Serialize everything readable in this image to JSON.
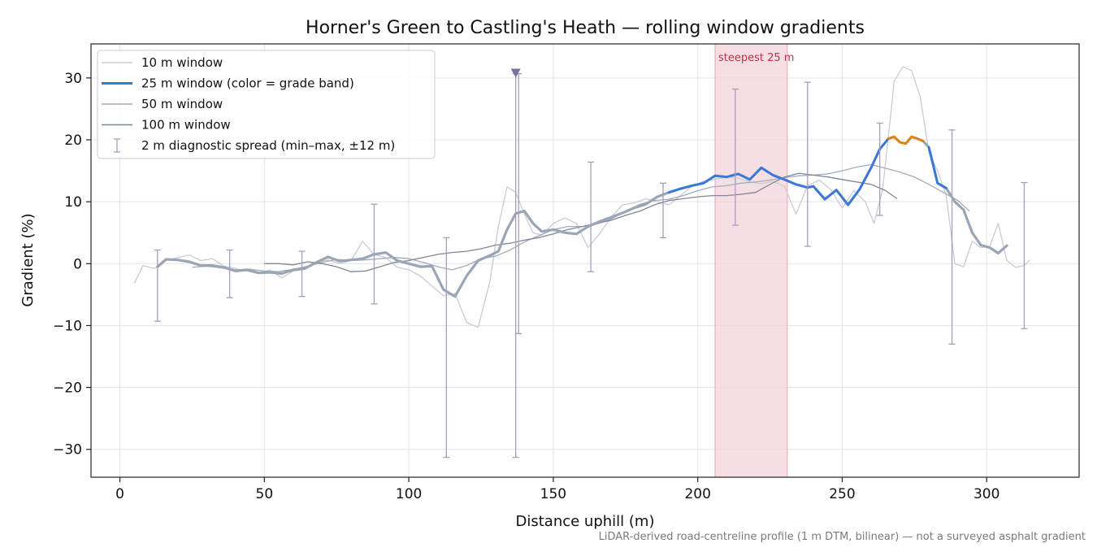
{
  "chart_data": {
    "type": "line",
    "title": "Horner's Green to Castling's Heath — rolling window gradients",
    "xlabel": "Distance uphill (m)",
    "ylabel": "Gradient (%)",
    "xlim": [
      -10,
      332
    ],
    "ylim": [
      -34.5,
      35.5
    ],
    "xticks": [
      0,
      50,
      100,
      150,
      200,
      250,
      300
    ],
    "yticks": [
      -30,
      -20,
      -10,
      0,
      10,
      20,
      30
    ],
    "ytick_labels": [
      "−30",
      "−20",
      "−10",
      "0",
      "10",
      "20",
      "30"
    ],
    "grid": true,
    "legend_position": "top-left",
    "footnote": "LiDAR-derived road-centreline profile (1 m DTM, bilinear) — not a surveyed asphalt gradient",
    "highlight": {
      "label": "steepest 25 m",
      "x_range": [
        206,
        231
      ],
      "color": "#f2d4d9",
      "label_color": "#c0304a"
    },
    "marker": {
      "x": 137,
      "y": 30.7,
      "shape": "triangle-down",
      "color": "#7c6fa0"
    },
    "colors": {
      "w10": "#c7ccd6",
      "w25": "#9aa6b4",
      "w25_band_mid": "#3a78d8",
      "w25_band_high": "#e0860a",
      "w50": "#a2abbb",
      "w100": "#7f8796",
      "errorbar": "#a89cc0"
    },
    "series": [
      {
        "name": "10 m window",
        "color": "#c7ccd6",
        "width": 1.3,
        "x": [
          5,
          8,
          12,
          16,
          20,
          24,
          28,
          32,
          36,
          40,
          44,
          48,
          52,
          56,
          60,
          64,
          68,
          72,
          76,
          80,
          84,
          88,
          92,
          96,
          100,
          104,
          108,
          112,
          116,
          120,
          124,
          128,
          131,
          134,
          137,
          140,
          143,
          146,
          150,
          154,
          158,
          162,
          166,
          170,
          174,
          178,
          182,
          186,
          190,
          194,
          198,
          202,
          206,
          210,
          214,
          218,
          222,
          226,
          230,
          234,
          238,
          242,
          246,
          250,
          254,
          258,
          261,
          264,
          267,
          268,
          271,
          274,
          277,
          280,
          283,
          286,
          289,
          292,
          295,
          298,
          301,
          304,
          307,
          310,
          313,
          315
        ],
        "y": [
          -3.2,
          -0.3,
          -0.8,
          0.5,
          1.0,
          1.4,
          0.5,
          0.8,
          -0.4,
          -0.8,
          -1.2,
          -1.6,
          -1.0,
          -2.3,
          -1.2,
          -0.9,
          0.2,
          0.6,
          0.0,
          0.5,
          3.6,
          1.5,
          1.0,
          -0.6,
          -1.0,
          -2.0,
          -3.6,
          -5.2,
          -4.8,
          -9.5,
          -10.3,
          -3.0,
          6.0,
          12.4,
          11.5,
          8.0,
          5.0,
          4.6,
          6.5,
          7.4,
          6.5,
          2.6,
          4.8,
          7.5,
          9.5,
          9.8,
          10.5,
          10.0,
          9.5,
          11.0,
          12.5,
          13.3,
          13.6,
          14.0,
          13.8,
          13.2,
          12.9,
          13.3,
          12.5,
          8.0,
          12.6,
          13.5,
          12.0,
          9.0,
          11.8,
          10.0,
          6.5,
          12.0,
          25.0,
          29.5,
          31.8,
          31.2,
          27.0,
          18.0,
          15.0,
          11.0,
          0.0,
          -0.5,
          3.6,
          2.6,
          2.7,
          6.5,
          0.5,
          -0.6,
          -0.3,
          0.6
        ]
      },
      {
        "name": "25 m window (color = grade band)",
        "color": "#3a78d8",
        "width": 2.6,
        "x": [
          13,
          16,
          20,
          24,
          28,
          32,
          36,
          40,
          44,
          48,
          52,
          56,
          60,
          64,
          68,
          72,
          76,
          80,
          84,
          88,
          92,
          96,
          100,
          104,
          108,
          112,
          116,
          120,
          124,
          128,
          131,
          134,
          137,
          140,
          143,
          146,
          150,
          154,
          158,
          162,
          166,
          170,
          174,
          178,
          182,
          186,
          190,
          194,
          198,
          202,
          206,
          210,
          214,
          218,
          222,
          226,
          230,
          234,
          238,
          240,
          244,
          248,
          252,
          256,
          260,
          263,
          266,
          268,
          270,
          272,
          274,
          276,
          278,
          280,
          283,
          286,
          289,
          292,
          295,
          298,
          301,
          304,
          307
        ],
        "y": [
          -0.5,
          0.7,
          0.6,
          0.3,
          -0.3,
          -0.3,
          -0.6,
          -1.2,
          -1.0,
          -1.5,
          -1.4,
          -1.6,
          -1.0,
          -0.8,
          0.2,
          1.1,
          0.4,
          0.6,
          0.8,
          1.5,
          1.8,
          0.5,
          0.0,
          -0.5,
          -0.4,
          -4.2,
          -5.3,
          -2.0,
          0.5,
          1.3,
          2.0,
          5.5,
          8.1,
          8.5,
          6.5,
          5.2,
          5.5,
          5.0,
          4.8,
          6.0,
          6.8,
          7.5,
          8.2,
          9.0,
          9.6,
          10.8,
          11.5,
          12.1,
          12.6,
          13.0,
          14.2,
          14.0,
          14.5,
          13.6,
          15.5,
          14.3,
          13.6,
          12.8,
          12.3,
          12.5,
          10.4,
          11.9,
          9.5,
          12.0,
          15.5,
          18.5,
          20.2,
          20.5,
          19.6,
          19.4,
          20.5,
          20.2,
          19.8,
          18.8,
          13.0,
          12.2,
          10.0,
          8.7,
          5.0,
          3.0,
          2.6,
          1.7,
          2.9
        ],
        "band_colors": [
          [
            "#9aa6b4",
            -999,
            134.5
          ],
          [
            "#3a78d8",
            188,
            266
          ],
          [
            "#e0860a",
            266,
            278.5
          ],
          [
            "#3a78d8",
            278.5,
            286
          ]
        ]
      },
      {
        "name": "50 m window",
        "color": "#a2abbb",
        "width": 1.3,
        "x": [
          25,
          30,
          35,
          40,
          45,
          50,
          55,
          60,
          65,
          70,
          75,
          80,
          85,
          90,
          95,
          100,
          105,
          110,
          115,
          120,
          125,
          130,
          135,
          140,
          145,
          150,
          155,
          160,
          165,
          170,
          175,
          180,
          185,
          190,
          195,
          200,
          205,
          210,
          215,
          220,
          225,
          230,
          235,
          240,
          245,
          250,
          255,
          260,
          265,
          270,
          275,
          280,
          285,
          290,
          294
        ],
        "y": [
          -0.6,
          -0.4,
          -0.7,
          -1.0,
          -0.9,
          -1.2,
          -1.3,
          -0.9,
          -0.4,
          0.2,
          0.7,
          0.5,
          0.6,
          0.8,
          1.0,
          0.8,
          0.2,
          -0.5,
          -1.0,
          -0.3,
          0.8,
          1.2,
          2.2,
          3.5,
          4.5,
          5.5,
          6.0,
          6.0,
          6.4,
          7.2,
          8.5,
          9.6,
          10.2,
          10.4,
          11.0,
          11.8,
          12.4,
          12.6,
          13.0,
          13.2,
          13.5,
          13.9,
          14.2,
          14.3,
          14.5,
          15.0,
          15.6,
          16.0,
          15.4,
          14.8,
          14.0,
          12.8,
          11.5,
          10.2,
          8.5
        ]
      },
      {
        "name": "100 m window",
        "color": "#7f8796",
        "width": 1.3,
        "x": [
          50,
          55,
          60,
          65,
          70,
          75,
          80,
          85,
          90,
          95,
          100,
          105,
          110,
          115,
          120,
          125,
          130,
          135,
          140,
          145,
          150,
          155,
          160,
          165,
          170,
          175,
          180,
          185,
          190,
          195,
          200,
          205,
          210,
          215,
          220,
          225,
          230,
          235,
          240,
          245,
          250,
          255,
          260,
          265,
          269
        ],
        "y": [
          0.0,
          0.0,
          -0.2,
          0.3,
          0.0,
          -0.5,
          -1.3,
          -1.2,
          -0.5,
          0.2,
          0.5,
          1.0,
          1.5,
          1.8,
          2.0,
          2.4,
          3.0,
          3.3,
          3.8,
          4.2,
          4.8,
          5.5,
          6.0,
          6.5,
          7.0,
          7.8,
          8.5,
          9.5,
          10.2,
          10.5,
          10.8,
          11.0,
          11.0,
          11.2,
          11.5,
          12.8,
          14.0,
          14.6,
          14.3,
          14.0,
          13.6,
          13.2,
          12.8,
          11.8,
          10.5
        ]
      }
    ],
    "error_bars": {
      "name": "2 m diagnostic spread (min–max, ±12 m)",
      "color": "#a89cc0",
      "items": [
        {
          "x": 13,
          "lo": -9.3,
          "hi": 2.2
        },
        {
          "x": 38,
          "lo": -5.5,
          "hi": 2.2
        },
        {
          "x": 63,
          "lo": -5.3,
          "hi": 2.0
        },
        {
          "x": 88,
          "lo": -6.5,
          "hi": 9.6
        },
        {
          "x": 113,
          "lo": -31.3,
          "hi": 4.2
        },
        {
          "x": 137,
          "lo": -31.3,
          "hi": 30.7
        },
        {
          "x": 138,
          "lo": -11.3,
          "hi": 30.7
        },
        {
          "x": 163,
          "lo": -1.3,
          "hi": 16.4
        },
        {
          "x": 188,
          "lo": 4.2,
          "hi": 13.0
        },
        {
          "x": 213,
          "lo": 6.2,
          "hi": 28.2
        },
        {
          "x": 238,
          "lo": 2.8,
          "hi": 29.3
        },
        {
          "x": 263,
          "lo": 7.8,
          "hi": 22.7
        },
        {
          "x": 288,
          "lo": -13.0,
          "hi": 21.6
        },
        {
          "x": 313,
          "lo": -10.5,
          "hi": 13.1
        }
      ]
    }
  }
}
